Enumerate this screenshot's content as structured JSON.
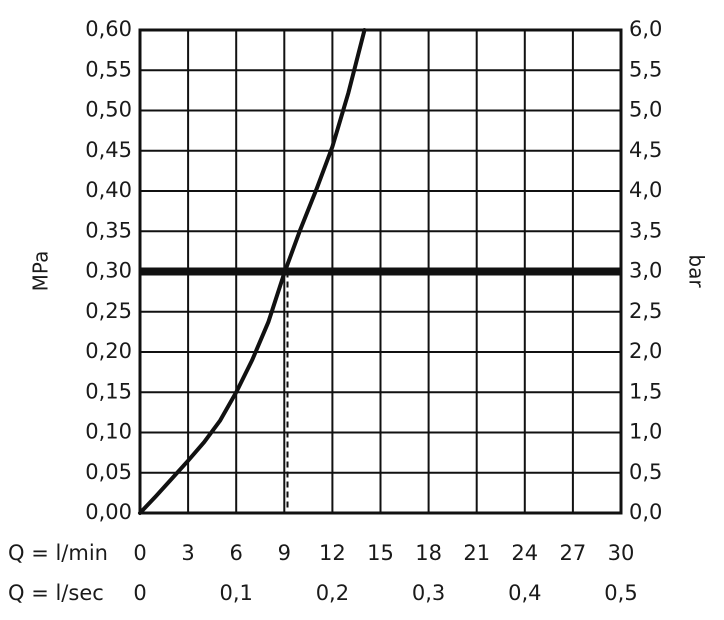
{
  "chart_data": {
    "type": "line",
    "title": "",
    "ylabel_left": "MPa",
    "ylabel_right": "bar",
    "x_row_label_lmin": "Q = l/min",
    "x_row_label_lsec": "Q = l/sec",
    "xlim": [
      0,
      30
    ],
    "ylim": [
      0,
      0.6
    ],
    "grid": true,
    "x_ticks_lmin": [
      {
        "value": 0,
        "label": "0"
      },
      {
        "value": 3,
        "label": "3"
      },
      {
        "value": 6,
        "label": "6"
      },
      {
        "value": 9,
        "label": "9"
      },
      {
        "value": 12,
        "label": "12"
      },
      {
        "value": 15,
        "label": "15"
      },
      {
        "value": 18,
        "label": "18"
      },
      {
        "value": 21,
        "label": "21"
      },
      {
        "value": 24,
        "label": "24"
      },
      {
        "value": 27,
        "label": "27"
      },
      {
        "value": 30,
        "label": "30"
      }
    ],
    "x_ticks_lsec": [
      {
        "value": 0,
        "label": "0"
      },
      {
        "value": 6,
        "label": "0,1"
      },
      {
        "value": 12,
        "label": "0,2"
      },
      {
        "value": 18,
        "label": "0,3"
      },
      {
        "value": 24,
        "label": "0,4"
      },
      {
        "value": 30,
        "label": "0,5"
      }
    ],
    "y_ticks_left": [
      {
        "value": 0.0,
        "label": "0,00"
      },
      {
        "value": 0.05,
        "label": "0,05"
      },
      {
        "value": 0.1,
        "label": "0,10"
      },
      {
        "value": 0.15,
        "label": "0,15"
      },
      {
        "value": 0.2,
        "label": "0,20"
      },
      {
        "value": 0.25,
        "label": "0,25"
      },
      {
        "value": 0.3,
        "label": "0,30"
      },
      {
        "value": 0.35,
        "label": "0,35"
      },
      {
        "value": 0.4,
        "label": "0,40"
      },
      {
        "value": 0.45,
        "label": "0,45"
      },
      {
        "value": 0.5,
        "label": "0,50"
      },
      {
        "value": 0.55,
        "label": "0,55"
      },
      {
        "value": 0.6,
        "label": "0,60"
      }
    ],
    "y_ticks_right": [
      {
        "value": 0.0,
        "label": "0,0"
      },
      {
        "value": 0.05,
        "label": "0,5"
      },
      {
        "value": 0.1,
        "label": "1,0"
      },
      {
        "value": 0.15,
        "label": "1,5"
      },
      {
        "value": 0.2,
        "label": "2,0"
      },
      {
        "value": 0.25,
        "label": "2,5"
      },
      {
        "value": 0.3,
        "label": "3,0"
      },
      {
        "value": 0.35,
        "label": "3,5"
      },
      {
        "value": 0.4,
        "label": "4,0"
      },
      {
        "value": 0.45,
        "label": "4,5"
      },
      {
        "value": 0.5,
        "label": "5,0"
      },
      {
        "value": 0.55,
        "label": "5,5"
      },
      {
        "value": 0.6,
        "label": "6,0"
      }
    ],
    "series": [
      {
        "x": [
          0,
          1,
          2,
          3,
          4,
          5,
          6,
          7,
          8,
          9,
          10,
          11,
          12,
          13,
          14
        ],
        "y": [
          0,
          0.021,
          0.043,
          0.065,
          0.088,
          0.115,
          0.15,
          0.19,
          0.237,
          0.298,
          0.352,
          0.402,
          0.455,
          0.522,
          0.6
        ]
      }
    ],
    "reference_line_y": 0.3,
    "reference_marker_x": 9.2,
    "line_color": "#111111",
    "grid_color": "#111111"
  }
}
